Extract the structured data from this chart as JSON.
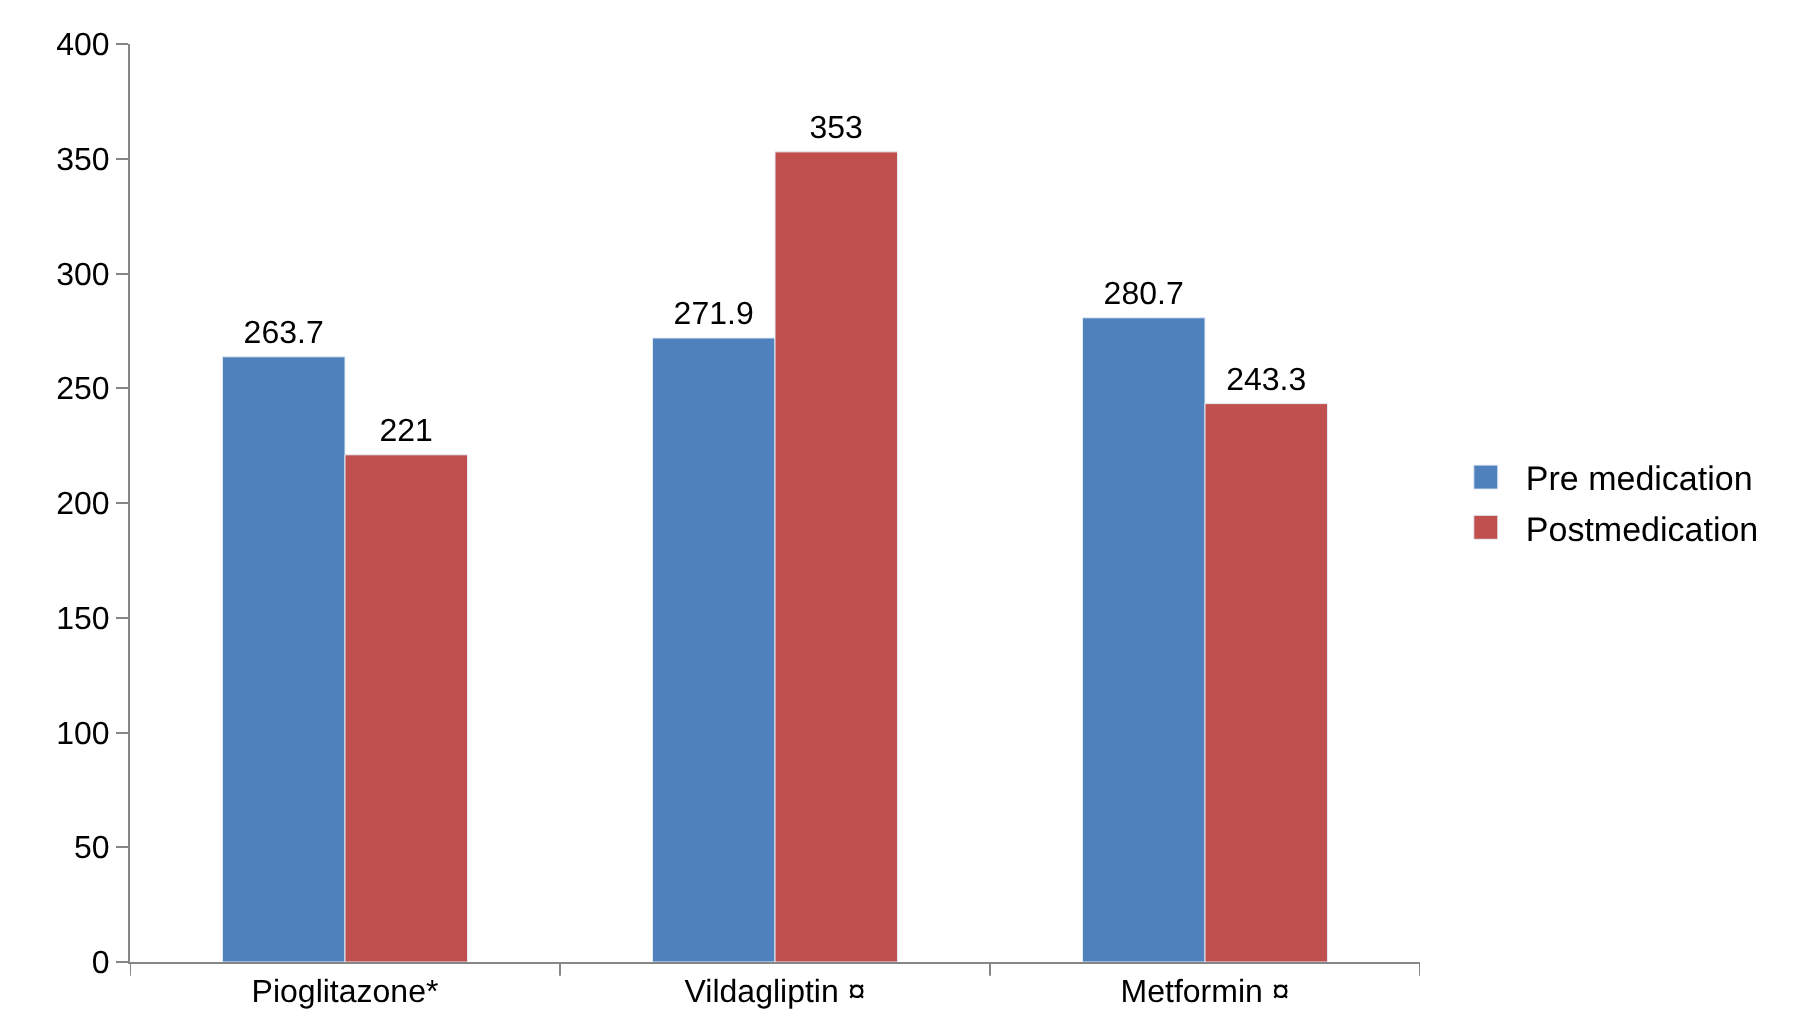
{
  "chart_data": {
    "type": "bar",
    "categories": [
      "Pioglitazone*",
      "Vildagliptin ¤",
      "Metformin ¤"
    ],
    "series": [
      {
        "name": "Pre medication",
        "color": "#4f81bd",
        "values": [
          263.7,
          271.9,
          280.7
        ]
      },
      {
        "name": "Postmedication",
        "color": "#c0504d",
        "values": [
          221,
          353,
          243.3
        ]
      }
    ],
    "ylim": [
      0,
      400
    ],
    "yticks": [
      0,
      50,
      100,
      150,
      200,
      250,
      300,
      350,
      400
    ],
    "legend": "right",
    "data_labels": true
  }
}
